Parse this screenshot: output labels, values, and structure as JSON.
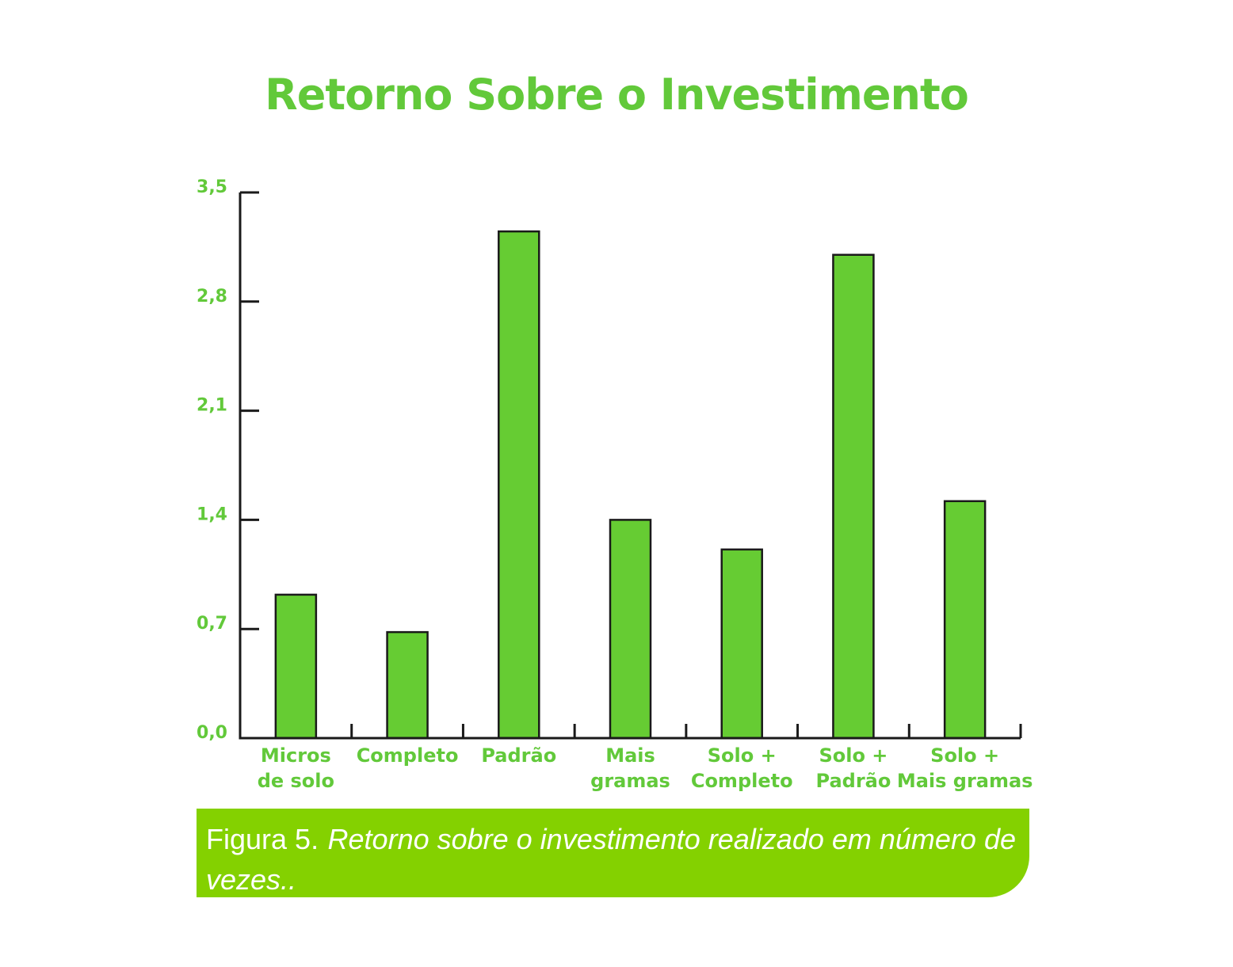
{
  "chart_data": {
    "type": "bar",
    "title": "Retorno Sobre o Investimento",
    "categories": [
      [
        "Micros",
        "de solo"
      ],
      [
        "Completo"
      ],
      [
        "Padrão"
      ],
      [
        "Mais",
        "gramas"
      ],
      [
        "Solo +",
        "Completo"
      ],
      [
        "Solo +",
        "Padrão"
      ],
      [
        "Solo +",
        "Mais gramas"
      ]
    ],
    "values": [
      0.92,
      0.68,
      3.25,
      1.4,
      1.21,
      3.1,
      1.52
    ],
    "ylim": [
      0,
      3.5
    ],
    "yticks": [
      "0,0",
      "0,7",
      "1,4",
      "2,1",
      "2,8",
      "3,5"
    ],
    "ytick_values": [
      0,
      0.7,
      1.4,
      2.1,
      2.8,
      3.5
    ],
    "xlabel": "",
    "ylabel": "",
    "grid": false,
    "colors": {
      "bar": "#66cc33",
      "bar_outline": "#1a1a1a",
      "axis": "#1a1a1a",
      "text": "#62c93a"
    }
  },
  "caption": {
    "label": "Figura 5.",
    "text": "Retorno sobre o investimento realizado em número de vezes..",
    "background": "#84d100"
  }
}
